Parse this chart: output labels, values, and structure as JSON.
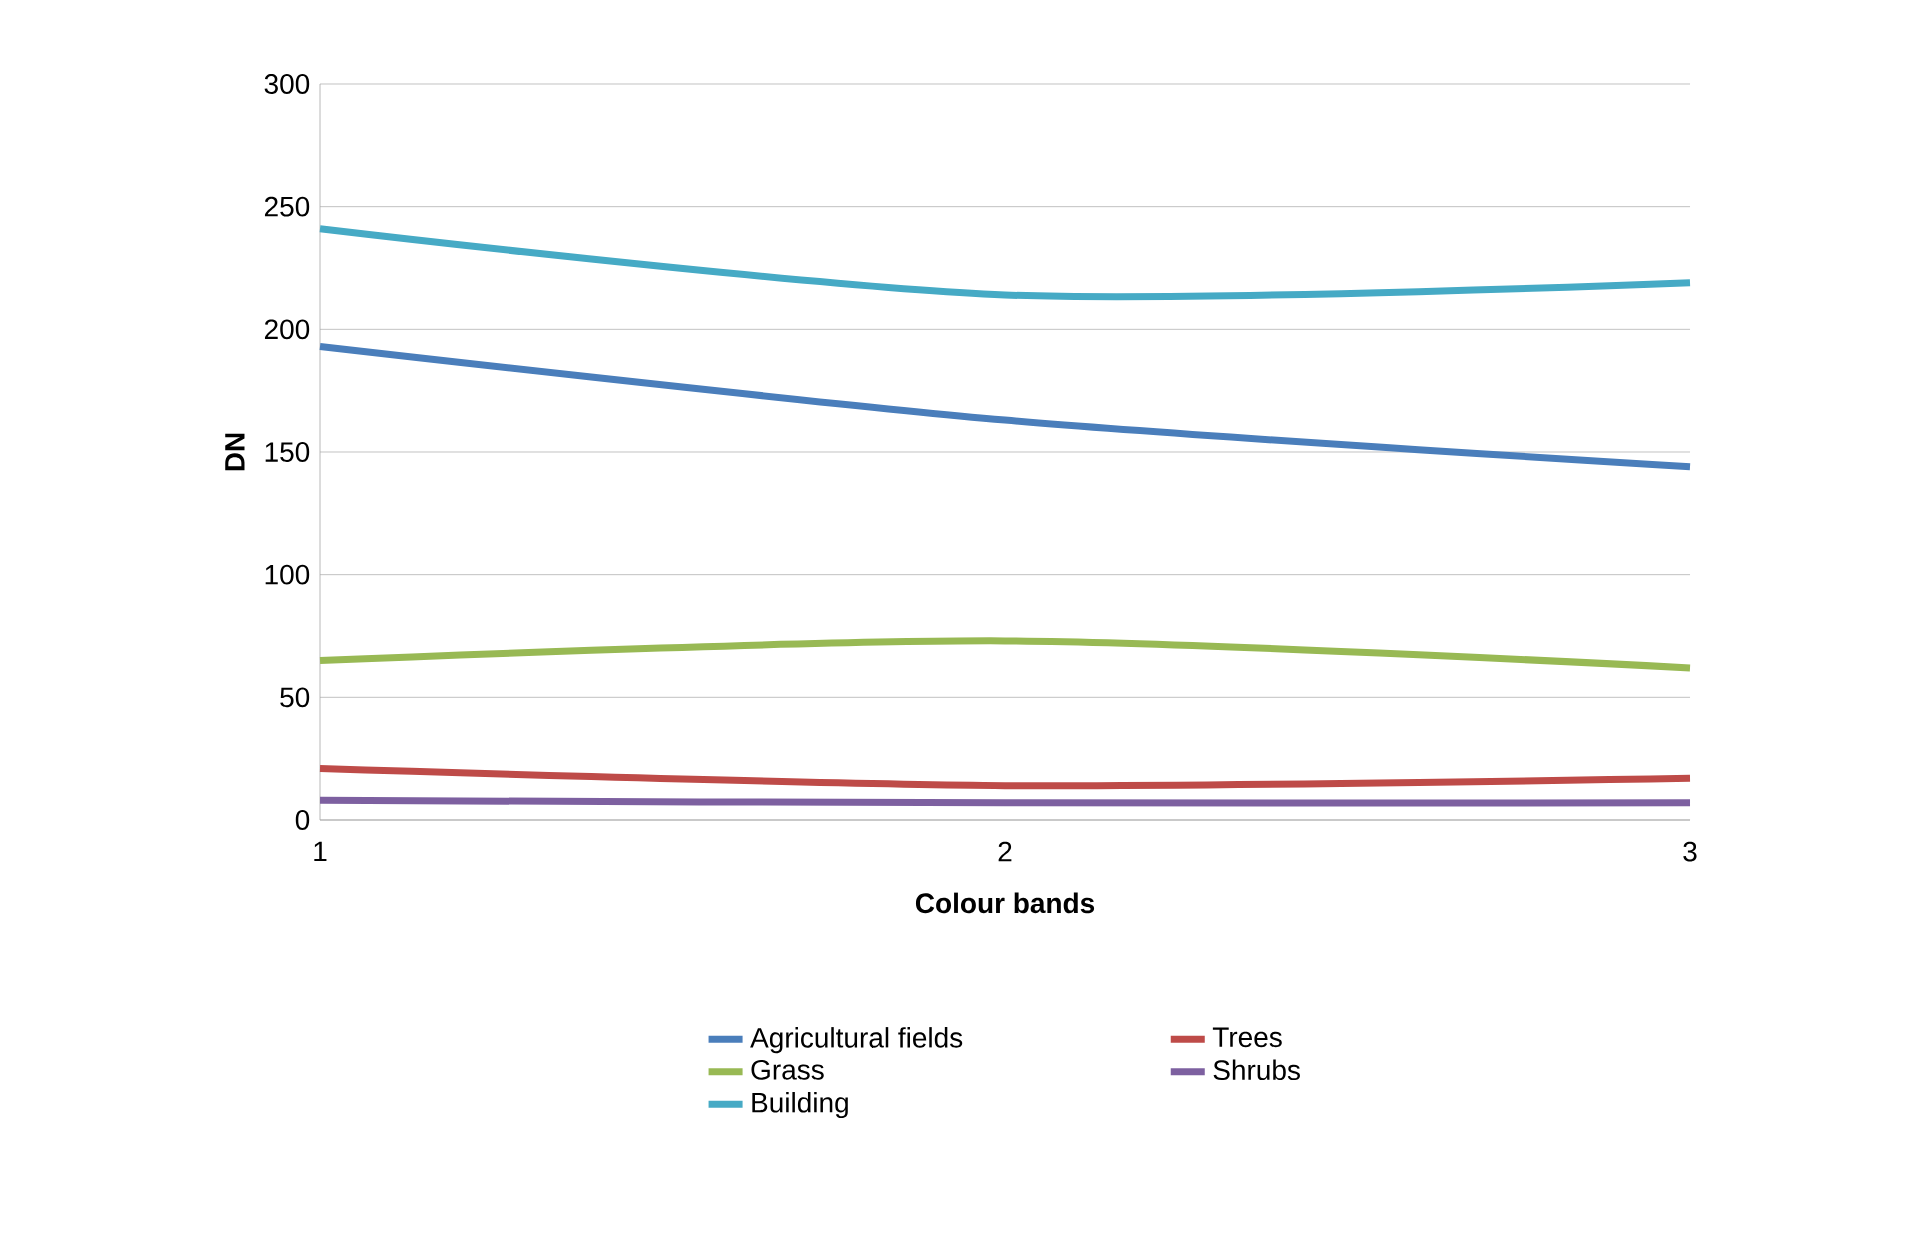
{
  "chart_data": {
    "type": "line",
    "xlabel": "Colour bands",
    "ylabel": "DN",
    "x": [
      1,
      2,
      3
    ],
    "xlim": [
      1,
      3
    ],
    "xticks": [
      1,
      2,
      3
    ],
    "ylim": [
      0,
      300
    ],
    "yticks": [
      0,
      50,
      100,
      150,
      200,
      250,
      300
    ],
    "grid": "y",
    "legend": "bottom",
    "marker": "none",
    "line_style": "solid",
    "series": [
      {
        "name": "Agricultural fields",
        "color": "#4a7ebb",
        "values": [
          193,
          163,
          144
        ]
      },
      {
        "name": "Trees",
        "color": "#be4b48",
        "values": [
          21,
          14,
          17
        ]
      },
      {
        "name": "Grass",
        "color": "#98b954",
        "values": [
          65,
          73,
          62
        ]
      },
      {
        "name": "Shrubs",
        "color": "#7d60a0",
        "values": [
          8,
          7,
          7
        ]
      },
      {
        "name": "Building",
        "color": "#46aac5",
        "values": [
          241,
          214,
          219
        ]
      }
    ]
  }
}
